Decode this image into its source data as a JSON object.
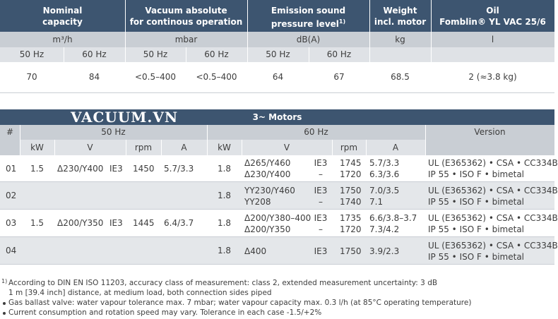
{
  "table1": {
    "headers": [
      "Nominal\ncapacity",
      "Vacuum absolute\nfor continous operation",
      "Emission sound\npressure level",
      "Weight\nincl. motor",
      "Oil\nFomblin® YL VAC 25/6"
    ],
    "footnote_ref": "1)",
    "units": [
      "m³/h",
      "mbar",
      "dB(A)",
      "kg",
      "l"
    ],
    "frequencies": [
      "50 Hz",
      "60 Hz",
      "50 Hz",
      "60 Hz",
      "50 Hz",
      "60 Hz"
    ],
    "values": [
      "70",
      "84",
      "<0.5–400",
      "<0.5–400",
      "64",
      "67",
      "68.5",
      "2 (≈3.8 kg)"
    ]
  },
  "table2": {
    "watermark": "VACUUM.VN",
    "title": "3~ Motors",
    "group_headers": [
      "#",
      "50 Hz",
      "60 Hz",
      "Version"
    ],
    "subheaders": [
      "kW",
      "V",
      "rpm",
      "A",
      "kW",
      "V",
      "rpm",
      "A"
    ],
    "rows": [
      {
        "no": "01",
        "kw50": "1.5",
        "v50": "Δ230/Y400",
        "ie50": "IE3",
        "rpm50": "1450",
        "a50": "5.7/3.3",
        "kw60": "1.8",
        "v60": [
          "Δ265/Y460",
          "Δ230/Y400"
        ],
        "ie60": [
          "IE3",
          "–"
        ],
        "rpm60": [
          "1745",
          "1720"
        ],
        "a60": [
          "5.7/3.3",
          "6.3/3.6"
        ],
        "version": [
          "UL (E365362) • CSA • CC334B",
          "IP 55 • ISO F • bimetal"
        ]
      },
      {
        "no": "02",
        "kw60": "1.8",
        "v60": [
          "YY230/Y460",
          "YY208"
        ],
        "ie60": [
          "IE3",
          "–"
        ],
        "rpm60": [
          "1750",
          "1740"
        ],
        "a60": [
          "7.0/3.5",
          "7.1"
        ],
        "version": [
          "UL (E365362) • CSA • CC334B",
          "IP 55 • ISO F • bimetal"
        ]
      },
      {
        "no": "03",
        "kw50": "1.5",
        "v50": "Δ200/Y350",
        "ie50": "IE3",
        "rpm50": "1445",
        "a50": "6.4/3.7",
        "kw60": "1.8",
        "v60": [
          "Δ200/Y380–400",
          "Δ200/Y350"
        ],
        "ie60": [
          "IE3",
          "–"
        ],
        "rpm60": [
          "1735",
          "1720"
        ],
        "a60": [
          "6.6/3.8–3.7",
          "7.3/4.2"
        ],
        "version": [
          "UL (E365362) • CSA • CC334B",
          "IP 55 • ISO F • bimetal"
        ]
      },
      {
        "no": "04",
        "kw60": "1.8",
        "v60": [
          "Δ400"
        ],
        "ie60": [
          "IE3"
        ],
        "rpm60": [
          "1750"
        ],
        "a60": [
          "3.9/2.3"
        ],
        "version": [
          "UL (E365362) • CSA • CC334B",
          "IP 55 • ISO F • bimetal"
        ]
      }
    ]
  },
  "footnotes": [
    {
      "marker": "1)",
      "lines": [
        "According to DIN EN ISO 11203, accuracy class of measurement: class 2, extended measurement uncertainty: 3 dB",
        "1 m [39.4 inch] distance, at medium load, both connection sides piped"
      ]
    },
    {
      "lines": [
        "Gas ballast valve: water vapour tolerance max. 7 mbar; water vapour capacity max. 0.3 l/h (at 85°C operating temperature)"
      ]
    },
    {
      "lines": [
        "Current consumption and rotation speed may vary. Tolerance in each case -1.5/+2%"
      ]
    }
  ]
}
